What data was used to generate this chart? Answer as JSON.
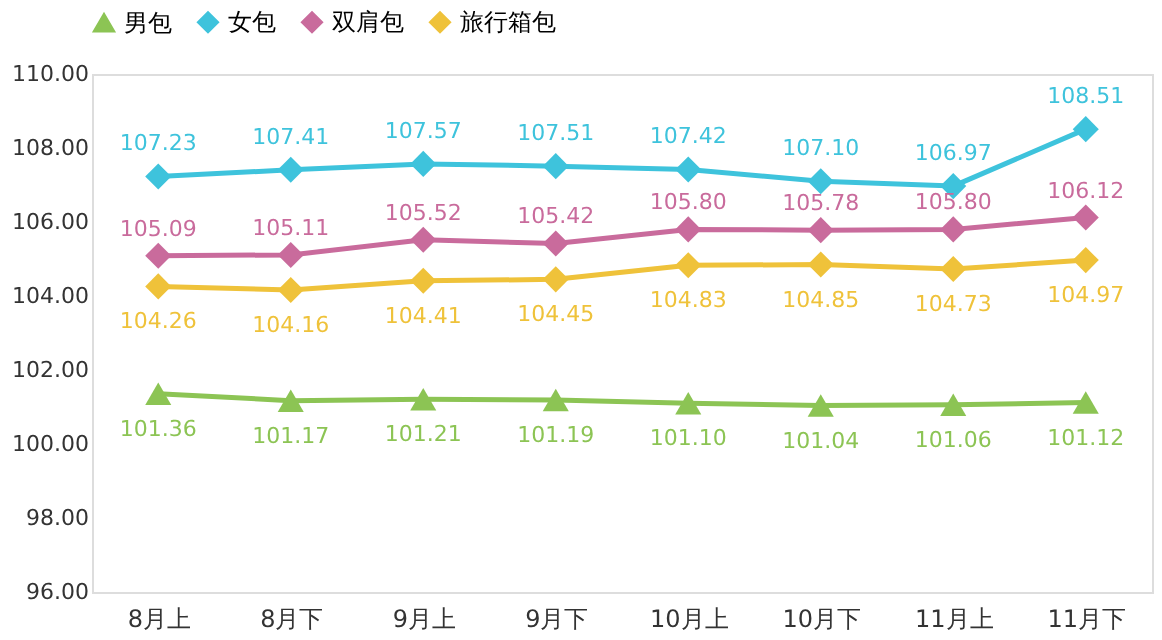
{
  "chart_data": {
    "type": "line",
    "categories": [
      "8月上",
      "8月下",
      "9月上",
      "9月下",
      "10月上",
      "10月下",
      "11月上",
      "11月下"
    ],
    "series": [
      {
        "name": "男包",
        "color": "#8cc454",
        "marker": "triangle",
        "values": [
          101.36,
          101.17,
          101.21,
          101.19,
          101.1,
          101.04,
          101.06,
          101.12
        ],
        "value_labels": [
          "101.36",
          "101.17",
          "101.21",
          "101.19",
          "101.10",
          "101.04",
          "101.06",
          "101.12"
        ]
      },
      {
        "name": "女包",
        "color": "#3ec3dc",
        "marker": "diamond",
        "values": [
          107.23,
          107.41,
          107.57,
          107.51,
          107.42,
          107.1,
          106.97,
          108.51
        ],
        "value_labels": [
          "107.23",
          "107.41",
          "107.57",
          "107.51",
          "107.42",
          "107.10",
          "106.97",
          "108.51"
        ]
      },
      {
        "name": "双肩包",
        "color": "#c96b9c",
        "marker": "diamond",
        "values": [
          105.09,
          105.11,
          105.52,
          105.42,
          105.8,
          105.78,
          105.8,
          106.12
        ],
        "value_labels": [
          "105.09",
          "105.11",
          "105.52",
          "105.42",
          "105.80",
          "105.78",
          "105.80",
          "106.12"
        ]
      },
      {
        "name": "旅行箱包",
        "color": "#efc23a",
        "marker": "diamond",
        "values": [
          104.26,
          104.16,
          104.41,
          104.45,
          104.83,
          104.85,
          104.73,
          104.97
        ],
        "value_labels": [
          "104.26",
          "104.16",
          "104.41",
          "104.45",
          "104.83",
          "104.85",
          "104.73",
          "104.97"
        ]
      }
    ],
    "ylim": [
      96,
      110
    ],
    "yticks": [
      {
        "value": 96,
        "label": "96.00"
      },
      {
        "value": 98,
        "label": "98.00"
      },
      {
        "value": 100,
        "label": "100.00"
      },
      {
        "value": 102,
        "label": "102.00"
      },
      {
        "value": 104,
        "label": "104.00"
      },
      {
        "value": 106,
        "label": "106.00"
      },
      {
        "value": 108,
        "label": "108.00"
      },
      {
        "value": 110,
        "label": "110.00"
      }
    ],
    "grid": false,
    "legend": "top"
  }
}
